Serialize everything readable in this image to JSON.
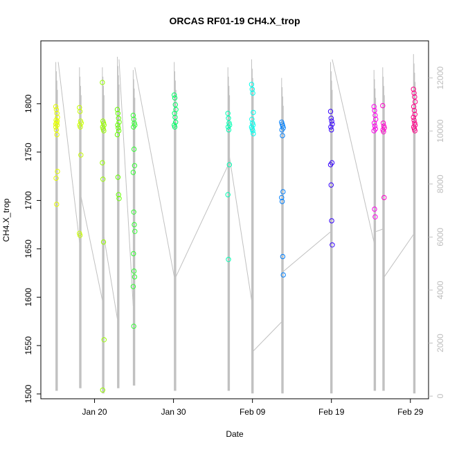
{
  "chart_data": {
    "type": "scatter",
    "title": "ORCAS RF01-19 CH4.X_trop",
    "xlabel": "Date",
    "ylabel": "CH4.X_trop",
    "x_ticks": [
      {
        "label": "Jan 20",
        "day": 5
      },
      {
        "label": "Jan 30",
        "day": 15
      },
      {
        "label": "Feb 09",
        "day": 25
      },
      {
        "label": "Feb 19",
        "day": 35
      },
      {
        "label": "Feb 29",
        "day": 45
      }
    ],
    "xlim_days": [
      -1.8,
      47.3
    ],
    "ylim": [
      1495,
      1865
    ],
    "y_ticks": [
      1500,
      1550,
      1600,
      1650,
      1700,
      1750,
      1800
    ],
    "y2_lim": [
      -100,
      13400
    ],
    "y2_ticks": [
      0,
      2000,
      4000,
      6000,
      8000,
      10000,
      12000
    ],
    "grid": false,
    "series": [
      {
        "color": "#e5ff00",
        "day": 0.2,
        "values": [
          1797,
          1794,
          1790,
          1786,
          1783,
          1780,
          1778,
          1776,
          1773,
          1768,
          1730,
          1723,
          1696,
          1782,
          1779
        ]
      },
      {
        "color": "#c8ff00",
        "day": 3.2,
        "values": [
          1796,
          1792,
          1782,
          1780,
          1778,
          1776,
          1747,
          1666,
          1664
        ]
      },
      {
        "color": "#99ff00",
        "day": 6.1,
        "values": [
          1822,
          1782,
          1780,
          1778,
          1776,
          1774,
          1772,
          1739,
          1722,
          1657,
          1556,
          1504
        ]
      },
      {
        "color": "#66ff00",
        "day": 8.0,
        "values": [
          1794,
          1790,
          1785,
          1781,
          1778,
          1775,
          1772,
          1768,
          1724,
          1706,
          1702
        ]
      },
      {
        "color": "#33ff33",
        "day": 10.0,
        "values": [
          1788,
          1784,
          1780,
          1778,
          1776,
          1753,
          1736,
          1729,
          1688,
          1675,
          1668,
          1645,
          1627,
          1621,
          1611,
          1570
        ]
      },
      {
        "color": "#00ff66",
        "day": 15.2,
        "values": [
          1809,
          1806,
          1799,
          1794,
          1790,
          1786,
          1781,
          1778,
          1776
        ]
      },
      {
        "color": "#00ffb3",
        "day": 22.0,
        "values": [
          1790,
          1785,
          1780,
          1778,
          1776,
          1773,
          1737,
          1706,
          1639
        ]
      },
      {
        "color": "#00ffee",
        "day": 25.0,
        "values": [
          1820,
          1815,
          1811,
          1791,
          1784,
          1780,
          1778,
          1776,
          1774,
          1772,
          1769
        ]
      },
      {
        "color": "#0080ff",
        "day": 28.8,
        "values": [
          1781,
          1779,
          1777,
          1775,
          1773,
          1767,
          1709,
          1703,
          1699,
          1642,
          1623
        ]
      },
      {
        "color": "#3300ff",
        "day": 35.0,
        "values": [
          1792,
          1785,
          1782,
          1779,
          1776,
          1773,
          1739,
          1737,
          1716,
          1679,
          1654
        ]
      },
      {
        "color": "#ff00ee",
        "day": 40.5,
        "values": [
          1797,
          1793,
          1788,
          1784,
          1780,
          1777,
          1774,
          1772,
          1691,
          1683
        ]
      },
      {
        "color": "#ff00cc",
        "day": 41.6,
        "values": [
          1798,
          1780,
          1777,
          1775,
          1773,
          1771,
          1703
        ]
      },
      {
        "color": "#ff0088",
        "day": 45.5,
        "values": [
          1815,
          1811,
          1807,
          1802,
          1797,
          1793,
          1789,
          1786,
          1783,
          1780,
          1778,
          1776,
          1774,
          1772
        ]
      }
    ],
    "altitude_trace": {
      "color": "#c0c0c0",
      "spikes": [
        {
          "day": 0.2,
          "min": 200,
          "max": 12600
        },
        {
          "day": 3.2,
          "min": 300,
          "max": 12400
        },
        {
          "day": 6.1,
          "min": 100,
          "max": 12400
        },
        {
          "day": 8.0,
          "min": 300,
          "max": 12800
        },
        {
          "day": 10.0,
          "min": 400,
          "max": 12300
        },
        {
          "day": 15.2,
          "min": 200,
          "max": 12600
        },
        {
          "day": 22.0,
          "min": 200,
          "max": 12400
        },
        {
          "day": 25.0,
          "min": 100,
          "max": 12700
        },
        {
          "day": 28.8,
          "min": 100,
          "max": 12000
        },
        {
          "day": 35.0,
          "min": 100,
          "max": 12600
        },
        {
          "day": 40.5,
          "min": 200,
          "max": 12300
        },
        {
          "day": 41.6,
          "min": 200,
          "max": 12400
        },
        {
          "day": 45.5,
          "min": 100,
          "max": 12900
        }
      ],
      "ferry_lines": [
        [
          [
            0.4,
            12600
          ],
          [
            3.1,
            5800
          ]
        ],
        [
          [
            3.3,
            7500
          ],
          [
            6.0,
            3600
          ]
        ],
        [
          [
            6.2,
            6000
          ],
          [
            7.9,
            2900
          ]
        ],
        [
          [
            8.1,
            12700
          ],
          [
            9.9,
            3400
          ]
        ],
        [
          [
            10.1,
            12400
          ],
          [
            15.1,
            4500
          ]
        ],
        [
          [
            15.3,
            4500
          ],
          [
            21.9,
            8700
          ]
        ],
        [
          [
            22.1,
            9000
          ],
          [
            24.9,
            3600
          ]
        ],
        [
          [
            25.1,
            1700
          ],
          [
            28.7,
            2800
          ]
        ],
        [
          [
            28.9,
            4700
          ],
          [
            34.9,
            6200
          ]
        ],
        [
          [
            35.1,
            12700
          ],
          [
            40.4,
            5800
          ]
        ],
        [
          [
            40.6,
            6200
          ],
          [
            41.5,
            6300
          ]
        ],
        [
          [
            41.7,
            4500
          ],
          [
            45.4,
            6100
          ]
        ]
      ]
    }
  }
}
